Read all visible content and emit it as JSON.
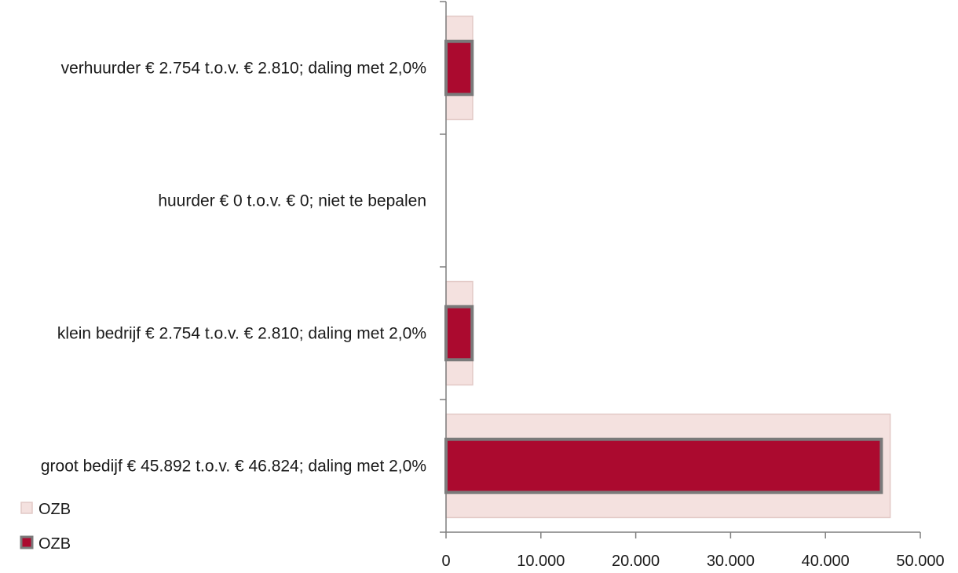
{
  "chart_data": {
    "type": "bar",
    "orientation": "horizontal",
    "categories": [
      "verhuurder € 2.754 t.o.v. € 2.810;  daling met 2,0%",
      "huurder € 0 t.o.v. € 0;  niet te bepalen",
      "klein bedrijf € 2.754 t.o.v. € 2.810; daling met 2,0%",
      "groot bedijf € 45.892 t.o.v. € 46.824; daling met 2,0%"
    ],
    "series": [
      {
        "name": "OZB",
        "values": [
          2810,
          0,
          2810,
          46824
        ],
        "color": "#f4e1df"
      },
      {
        "name": "OZB",
        "values": [
          2754,
          0,
          2754,
          45892
        ],
        "color": "#ab0a2f"
      }
    ],
    "xlim": [
      0,
      50000
    ],
    "x_ticks": [
      0,
      10000,
      20000,
      30000,
      40000,
      50000
    ],
    "x_tick_labels": [
      "0",
      "10.000",
      "20.000",
      "30.000",
      "40.000",
      "50.000"
    ],
    "title": "",
    "xlabel": "",
    "ylabel": "",
    "grid": false,
    "legend_position": "bottom-left"
  }
}
